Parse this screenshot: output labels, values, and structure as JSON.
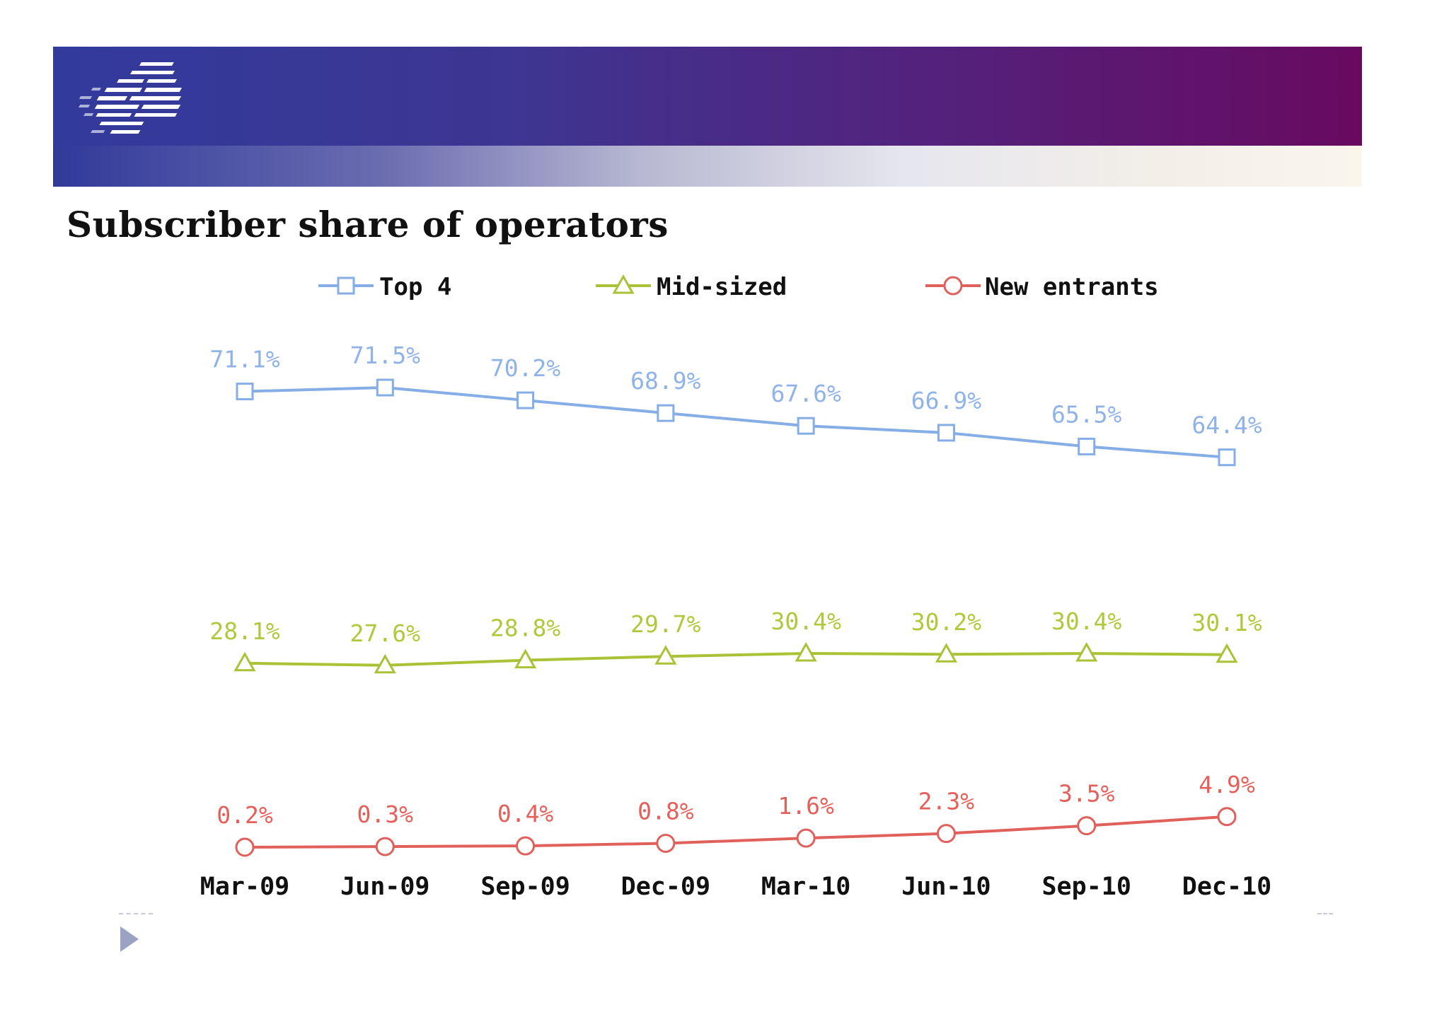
{
  "page": {
    "title": "Subscriber share of operators"
  },
  "colors": {
    "top4": "#86aee6",
    "midsized": "#a9c236",
    "new_entrants": "#e0605c",
    "label_top4": "#8fb3e8",
    "label_midsized": "#b2c83c",
    "label_new_entrants": "#e5605a"
  },
  "chart_data": {
    "type": "line",
    "title": "Subscriber share of operators",
    "categories": [
      "Mar-09",
      "Jun-09",
      "Sep-09",
      "Dec-09",
      "Mar-10",
      "Jun-10",
      "Sep-10",
      "Dec-10"
    ],
    "legend_position": "top",
    "grid": false,
    "series": [
      {
        "name": "Top 4",
        "marker": "square",
        "values": [
          71.1,
          71.5,
          70.2,
          68.9,
          67.6,
          66.9,
          65.5,
          64.4
        ],
        "labels": [
          "71.1%",
          "71.5%",
          "70.2%",
          "68.9%",
          "67.6%",
          "66.9%",
          "65.5%",
          "64.4%"
        ]
      },
      {
        "name": "Mid-sized",
        "marker": "triangle",
        "values": [
          28.1,
          27.6,
          28.8,
          29.7,
          30.4,
          30.2,
          30.4,
          30.1
        ],
        "labels": [
          "28.1%",
          "27.6%",
          "28.8%",
          "29.7%",
          "30.4%",
          "30.2%",
          "30.4%",
          "30.1%"
        ]
      },
      {
        "name": "New entrants",
        "marker": "circle",
        "values": [
          0.2,
          0.3,
          0.4,
          0.8,
          1.6,
          2.3,
          3.5,
          4.9
        ],
        "labels": [
          "0.2%",
          "0.3%",
          "0.4%",
          "0.8%",
          "1.6%",
          "2.3%",
          "3.5%",
          "4.9%"
        ]
      }
    ]
  }
}
